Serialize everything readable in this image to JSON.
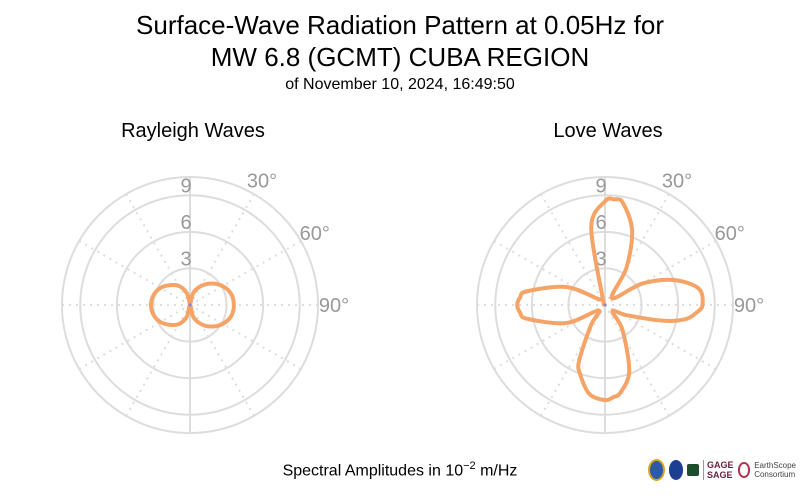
{
  "header": {
    "title_line1": "Surface-Wave Radiation Pattern at 0.05Hz for",
    "title_line2": "MW 6.8 (GCMT) CUBA REGION",
    "subtitle": "of November 10, 2024, 16:49:50"
  },
  "footer": {
    "label_prefix": "Spectral Amplitudes in 10",
    "label_exponent": "−2",
    "label_suffix": " m/Hz"
  },
  "logos": {
    "gage_line1": "GAGE",
    "gage_line2": "SAGE",
    "earthscope_name": "EarthScope",
    "earthscope_sub": "Consortium"
  },
  "colors": {
    "pattern": "#f5a366",
    "grid": "#dddddd",
    "tick_text": "#999999"
  },
  "chart_data": [
    {
      "type": "polar",
      "title": "Rayleigh Waves",
      "r_ticks": [
        3,
        6,
        9
      ],
      "r_tick_labels": [
        "3",
        "6",
        "9"
      ],
      "r_max": 10.5,
      "theta_labels": [
        "30°",
        "60°",
        "90°"
      ],
      "theta_zero": "north",
      "theta_direction": "clockwise",
      "grid": true,
      "series": [
        {
          "azimuth_deg": [
            0,
            15,
            30,
            45,
            60,
            75,
            90,
            105,
            120,
            135,
            150,
            165,
            180,
            195,
            210,
            225,
            240,
            255,
            270,
            285,
            300,
            315,
            330,
            345,
            360
          ],
          "amplitude": [
            0.0,
            1.0,
            1.8,
            2.5,
            3.1,
            3.5,
            3.6,
            3.5,
            3.1,
            2.5,
            1.8,
            1.0,
            0.0,
            1.0,
            1.8,
            2.3,
            2.8,
            3.1,
            3.2,
            3.1,
            2.8,
            2.3,
            1.8,
            1.0,
            0.0
          ]
        }
      ]
    },
    {
      "type": "polar",
      "title": "Love Waves",
      "r_ticks": [
        3,
        6,
        9
      ],
      "r_tick_labels": [
        "3",
        "6",
        "9"
      ],
      "r_max": 10.5,
      "theta_labels": [
        "30°",
        "60°",
        "90°"
      ],
      "theta_zero": "north",
      "theta_direction": "clockwise",
      "grid": true,
      "series": [
        {
          "azimuth_deg": [
            -20,
            -10,
            0,
            5,
            10,
            20,
            30,
            45,
            60,
            70,
            80,
            90,
            95,
            100,
            105,
            115,
            130,
            145,
            160,
            170,
            175,
            180,
            190,
            200,
            205,
            215,
            230,
            245,
            260,
            265,
            270,
            275,
            280,
            295,
            310,
            325,
            340
          ],
          "amplitude": [
            0.5,
            6.5,
            8.5,
            8.7,
            8.5,
            6.5,
            3.5,
            0.8,
            3.5,
            6.0,
            7.8,
            8.0,
            7.5,
            6.7,
            5.0,
            2.0,
            0.8,
            2.5,
            5.8,
            7.3,
            7.6,
            7.8,
            7.4,
            6.0,
            5.0,
            2.0,
            0.7,
            3.5,
            6.5,
            7.0,
            7.2,
            7.0,
            6.5,
            3.5,
            0.8,
            0.6,
            0.5
          ]
        }
      ]
    }
  ]
}
